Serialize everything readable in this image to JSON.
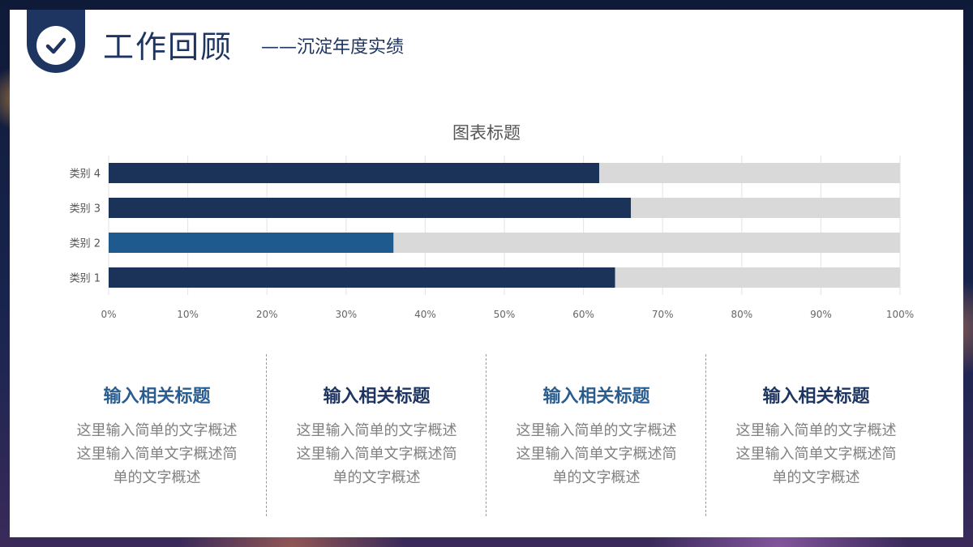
{
  "header": {
    "title": "工作回顾",
    "subtitle": "——沉淀年度实绩",
    "badge_icon": "check-icon"
  },
  "chart_data": {
    "type": "bar",
    "orientation": "horizontal",
    "stacked": "100%",
    "title": "图表标题",
    "categories": [
      "类别 1",
      "类别 2",
      "类别 3",
      "类别 4"
    ],
    "series": [
      {
        "values": [
          64,
          36,
          66,
          62
        ],
        "colors": [
          "#1b3358",
          "#1f5a8e",
          "#1b3358",
          "#1b3358"
        ]
      },
      {
        "values": [
          36,
          64,
          34,
          38
        ],
        "color": "#d9d9d9"
      }
    ],
    "xlim": [
      0,
      100
    ],
    "xticks": [
      "0%",
      "10%",
      "20%",
      "30%",
      "40%",
      "50%",
      "60%",
      "70%",
      "80%",
      "90%",
      "100%"
    ],
    "grid": true
  },
  "columns": [
    {
      "title": "输入相关标题",
      "desc": "这里输入简单的文字概述这里输入简单文字概述简单的文字概述",
      "color": "#2a5d8f"
    },
    {
      "title": "输入相关标题",
      "desc": "这里输入简单的文字概述这里输入简单文字概述简单的文字概述",
      "color": "#1d3560"
    },
    {
      "title": "输入相关标题",
      "desc": "这里输入简单的文字概述这里输入简单文字概述简单的文字概述",
      "color": "#2a5d8f"
    },
    {
      "title": "输入相关标题",
      "desc": "这里输入简单的文字概述这里输入简单文字概述简单的文字概述",
      "color": "#1d3560"
    }
  ]
}
